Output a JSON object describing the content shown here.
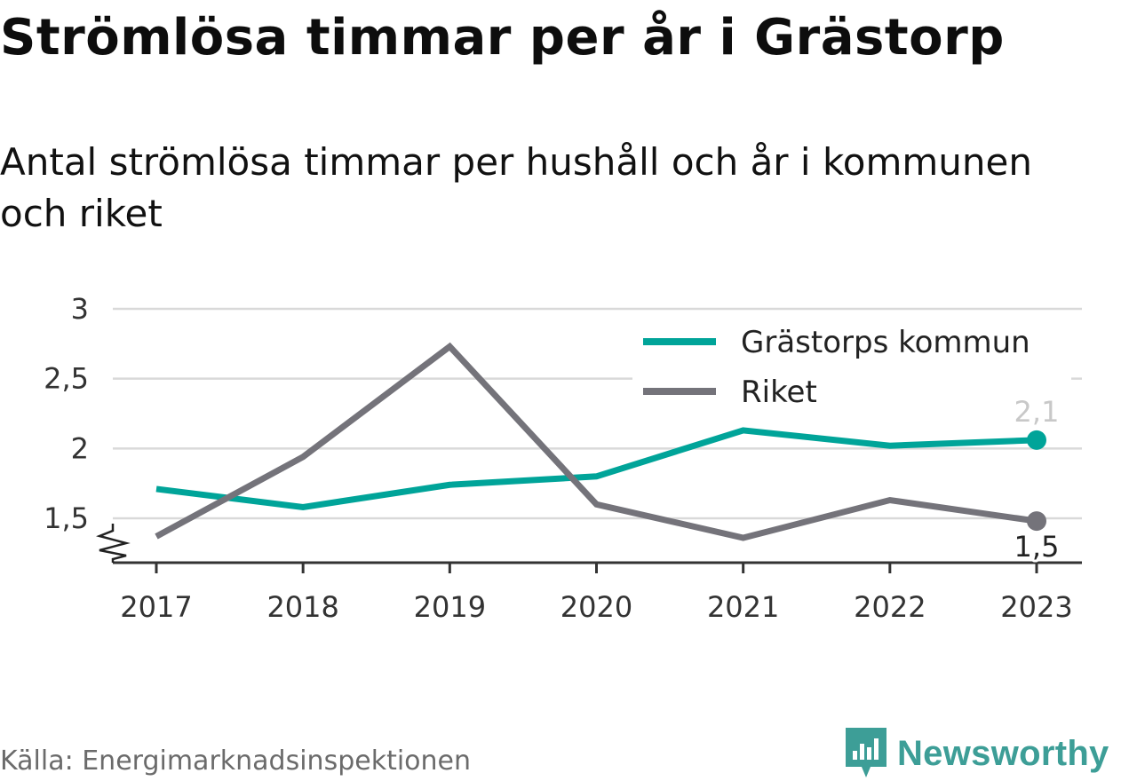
{
  "title": "Strömlösa timmar per år i Grästorp",
  "subtitle": "Antal strömlösa timmar per hushåll och år i kommunen och riket",
  "source": "Källa: Energimarknadsinspektionen",
  "brand": "Newsworthy",
  "colors": {
    "kommun": "#00a499",
    "riket": "#74737a",
    "grid": "#d9d9d9",
    "brand": "#3d9e97"
  },
  "chart_data": {
    "type": "line",
    "x": [
      "2017",
      "2018",
      "2019",
      "2020",
      "2021",
      "2022",
      "2023"
    ],
    "series": [
      {
        "name": "Grästorps kommun",
        "values": [
          1.71,
          1.58,
          1.74,
          1.8,
          2.13,
          2.02,
          2.06
        ],
        "color": "#00a499",
        "end_label": "2,1"
      },
      {
        "name": "Riket",
        "values": [
          1.37,
          1.94,
          2.73,
          1.6,
          1.36,
          1.63,
          1.48
        ],
        "color": "#74737a",
        "end_label": "1,5"
      }
    ],
    "y_ticks": [
      {
        "value": 1.5,
        "label": "1,5"
      },
      {
        "value": 2,
        "label": "2"
      },
      {
        "value": 2.5,
        "label": "2,5"
      },
      {
        "value": 3,
        "label": "3"
      }
    ],
    "ylim": [
      1.18,
      3
    ],
    "y_axis_break": true,
    "grid": true,
    "legend_position": "top-right",
    "xlabel": "",
    "ylabel": ""
  }
}
